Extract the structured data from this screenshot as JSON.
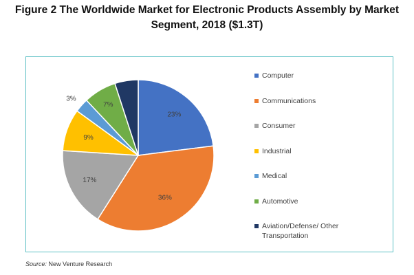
{
  "title_line1": "Figure 2   The Worldwide Market for Electronic Products Assembly by Market",
  "title_line2": "Segment, 2018 ($1.3T)",
  "source_label": "Source:",
  "source_text": "New Venture Research",
  "chart_data": {
    "type": "pie",
    "title": "The Worldwide Market for Electronic Products Assembly by Market Segment, 2018 ($1.3T)",
    "legend_position": "right",
    "slices": [
      {
        "label": "Computer",
        "value": 23,
        "display": "23%",
        "color": "#4472c4"
      },
      {
        "label": "Communications",
        "value": 36,
        "display": "36%",
        "color": "#ed7d31"
      },
      {
        "label": "Consumer",
        "value": 17,
        "display": "17%",
        "color": "#a5a5a5"
      },
      {
        "label": "Industrial",
        "value": 9,
        "display": "9%",
        "color": "#ffc000"
      },
      {
        "label": "Medical",
        "value": 3,
        "display": "3%",
        "color": "#5b9bd5"
      },
      {
        "label": "Automotive",
        "value": 7,
        "display": "7%",
        "color": "#70ad47"
      },
      {
        "label": "Aviation/Defense/ Other Transportation",
        "value": 5,
        "display": "",
        "color": "#203864"
      }
    ]
  }
}
